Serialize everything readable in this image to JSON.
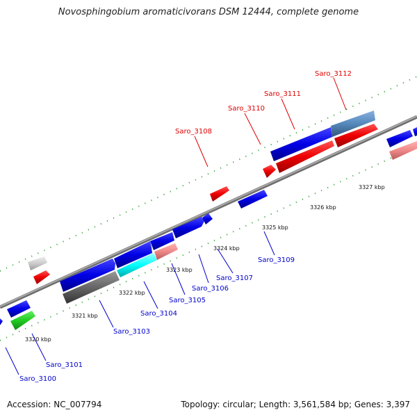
{
  "title": "Novosphingobium aromaticivorans DSM 12444, complete genome",
  "footer": {
    "accession": "Accession: NC_007794",
    "topology": "Topology: circular; Length: 3,561,584 bp; Genes: 3,397"
  },
  "colors": {
    "backbone": "#8a8a8a",
    "dots": "#229922",
    "forward_label": "#dd0000",
    "reverse_label": "#0000cc",
    "blue": "#0000e6",
    "red": "#ee0000",
    "pink": "#ee8888",
    "steel": "#5588bb",
    "cyan": "#00ffff",
    "gray": "#666666",
    "light_gray": "#cccccc",
    "green": "#22cc22"
  },
  "scale": {
    "ticks": [
      {
        "label": "3320 kbp"
      },
      {
        "label": "3321 kbp"
      },
      {
        "label": "3322 kbp"
      },
      {
        "label": "3323 kbp"
      },
      {
        "label": "3324 kbp"
      },
      {
        "label": "3325 kbp"
      },
      {
        "label": "3326 kbp"
      },
      {
        "label": "3327 kbp"
      }
    ]
  },
  "gene_labels": {
    "saro_3100": "Saro_3100",
    "saro_3101": "Saro_3101",
    "saro_3103": "Saro_3103",
    "saro_3104": "Saro_3104",
    "saro_3105": "Saro_3105",
    "saro_3106": "Saro_3106",
    "saro_3107": "Saro_3107",
    "saro_3108": "Saro_3108",
    "saro_3109": "Saro_3109",
    "saro_3110": "Saro_3110",
    "saro_3111": "Saro_3111",
    "saro_3112": "Saro_3112"
  }
}
